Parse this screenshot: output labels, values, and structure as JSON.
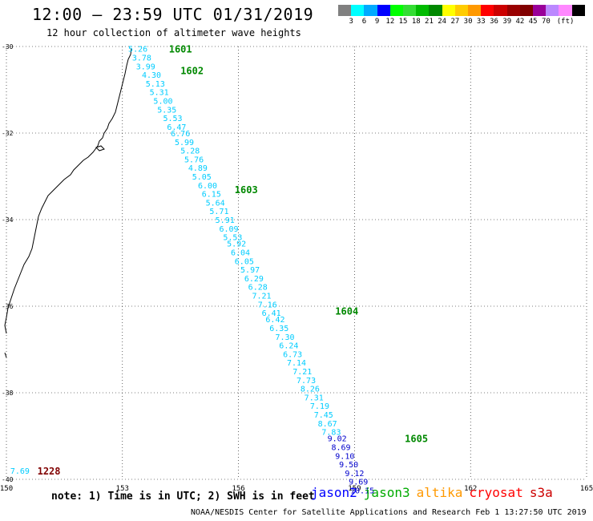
{
  "header": {
    "title": "12:00 — 23:59 UTC 01/31/2019",
    "subtitle": "12 hour collection of altimeter wave heights"
  },
  "legend": {
    "colors": [
      "#808080",
      "#00ffff",
      "#00aaff",
      "#0000ff",
      "#00ff00",
      "#33dd33",
      "#00bb00",
      "#008800",
      "#ffff00",
      "#ffcc00",
      "#ff9900",
      "#ff0000",
      "#cc0000",
      "#990000",
      "#800000",
      "#990099",
      "#bb88ff",
      "#ff88ff",
      "#000000"
    ],
    "labels": [
      "3",
      "6",
      "9",
      "12",
      "15",
      "18",
      "21",
      "24",
      "27",
      "30",
      "33",
      "36",
      "39",
      "42",
      "45",
      "70",
      "(ft)"
    ]
  },
  "map": {
    "lat_labels": [
      "-30",
      "-32",
      "-34",
      "-36",
      "-38",
      "-40"
    ],
    "lon_labels": [
      "150",
      "153",
      "156",
      "159",
      "162",
      "165"
    ],
    "lat_values": [
      -30,
      -32,
      -34,
      -36,
      -38,
      -40
    ],
    "lon_values": [
      150,
      153,
      156,
      159,
      162,
      165
    ],
    "track_times": [
      {
        "label": "1601",
        "lon": 154.2,
        "lat": -30.05
      },
      {
        "label": "1602",
        "lon": 154.5,
        "lat": -30.55
      },
      {
        "label": "1603",
        "lon": 155.9,
        "lat": -33.3
      },
      {
        "label": "1604",
        "lon": 158.5,
        "lat": -36.1
      },
      {
        "label": "1605",
        "lon": 160.3,
        "lat": -39.05
      },
      {
        "label": "1228",
        "lon": 150.8,
        "lat": -39.8
      }
    ],
    "observations": [
      {
        "v": "5.26",
        "lon": 153.4,
        "lat": -30.05,
        "c": "#00ccff"
      },
      {
        "v": "3.78",
        "lon": 153.5,
        "lat": -30.25,
        "c": "#00ccff"
      },
      {
        "v": "3.99",
        "lon": 153.6,
        "lat": -30.45,
        "c": "#00ccff"
      },
      {
        "v": "4.30",
        "lon": 153.75,
        "lat": -30.65,
        "c": "#00ccff"
      },
      {
        "v": "5.13",
        "lon": 153.85,
        "lat": -30.85,
        "c": "#00ccff"
      },
      {
        "v": "5.31",
        "lon": 153.95,
        "lat": -31.05,
        "c": "#00ccff"
      },
      {
        "v": "5.00",
        "lon": 154.05,
        "lat": -31.25,
        "c": "#00ccff"
      },
      {
        "v": "5.35",
        "lon": 154.15,
        "lat": -31.45,
        "c": "#00ccff"
      },
      {
        "v": "5.53",
        "lon": 154.3,
        "lat": -31.65,
        "c": "#00ccff"
      },
      {
        "v": "6.47",
        "lon": 154.4,
        "lat": -31.85,
        "c": "#00ccff"
      },
      {
        "v": "6.76",
        "lon": 154.5,
        "lat": -32.0,
        "c": "#00ccff"
      },
      {
        "v": "5.99",
        "lon": 154.6,
        "lat": -32.2,
        "c": "#00ccff"
      },
      {
        "v": "5.28",
        "lon": 154.75,
        "lat": -32.4,
        "c": "#00ccff"
      },
      {
        "v": "5.76",
        "lon": 154.85,
        "lat": -32.6,
        "c": "#00ccff"
      },
      {
        "v": "4.89",
        "lon": 154.95,
        "lat": -32.8,
        "c": "#00ccff"
      },
      {
        "v": "5.05",
        "lon": 155.05,
        "lat": -33.0,
        "c": "#00ccff"
      },
      {
        "v": "6.00",
        "lon": 155.2,
        "lat": -33.2,
        "c": "#00ccff"
      },
      {
        "v": "6.15",
        "lon": 155.3,
        "lat": -33.4,
        "c": "#00ccff"
      },
      {
        "v": "5.64",
        "lon": 155.4,
        "lat": -33.6,
        "c": "#00ccff"
      },
      {
        "v": "5.71",
        "lon": 155.5,
        "lat": -33.8,
        "c": "#00ccff"
      },
      {
        "v": "5.91",
        "lon": 155.65,
        "lat": -34.0,
        "c": "#00ccff"
      },
      {
        "v": "6.09",
        "lon": 155.75,
        "lat": -34.2,
        "c": "#00ccff"
      },
      {
        "v": "5.53",
        "lon": 155.85,
        "lat": -34.4,
        "c": "#00ccff"
      },
      {
        "v": "5.92",
        "lon": 155.95,
        "lat": -34.55,
        "c": "#00ccff"
      },
      {
        "v": "6.04",
        "lon": 156.05,
        "lat": -34.75,
        "c": "#00ccff"
      },
      {
        "v": "6.05",
        "lon": 156.15,
        "lat": -34.95,
        "c": "#00ccff"
      },
      {
        "v": "5.97",
        "lon": 156.3,
        "lat": -35.15,
        "c": "#00ccff"
      },
      {
        "v": "6.29",
        "lon": 156.4,
        "lat": -35.35,
        "c": "#00ccff"
      },
      {
        "v": "6.28",
        "lon": 156.5,
        "lat": -35.55,
        "c": "#00ccff"
      },
      {
        "v": "7.21",
        "lon": 156.6,
        "lat": -35.75,
        "c": "#00ccff"
      },
      {
        "v": "7.16",
        "lon": 156.75,
        "lat": -35.95,
        "c": "#00ccff"
      },
      {
        "v": "6.41",
        "lon": 156.85,
        "lat": -36.15,
        "c": "#00ccff"
      },
      {
        "v": "6.42",
        "lon": 156.95,
        "lat": -36.3,
        "c": "#00ccff"
      },
      {
        "v": "6.35",
        "lon": 157.05,
        "lat": -36.5,
        "c": "#00ccff"
      },
      {
        "v": "7.30",
        "lon": 157.2,
        "lat": -36.7,
        "c": "#00ccff"
      },
      {
        "v": "6.24",
        "lon": 157.3,
        "lat": -36.9,
        "c": "#00ccff"
      },
      {
        "v": "6.73",
        "lon": 157.4,
        "lat": -37.1,
        "c": "#00ccff"
      },
      {
        "v": "7.14",
        "lon": 157.5,
        "lat": -37.3,
        "c": "#00ccff"
      },
      {
        "v": "7.21",
        "lon": 157.65,
        "lat": -37.5,
        "c": "#00ccff"
      },
      {
        "v": "7.73",
        "lon": 157.75,
        "lat": -37.7,
        "c": "#00ccff"
      },
      {
        "v": "8.26",
        "lon": 157.85,
        "lat": -37.9,
        "c": "#00ccff"
      },
      {
        "v": "7.31",
        "lon": 157.95,
        "lat": -38.1,
        "c": "#00ccff"
      },
      {
        "v": "7.19",
        "lon": 158.1,
        "lat": -38.3,
        "c": "#00ccff"
      },
      {
        "v": "7.45",
        "lon": 158.2,
        "lat": -38.5,
        "c": "#00ccff"
      },
      {
        "v": "8.67",
        "lon": 158.3,
        "lat": -38.7,
        "c": "#00ccff"
      },
      {
        "v": "7.83",
        "lon": 158.4,
        "lat": -38.9,
        "c": "#00ccff"
      },
      {
        "v": "9.02",
        "lon": 158.55,
        "lat": -39.05,
        "c": "#0000cc"
      },
      {
        "v": "8.69",
        "lon": 158.65,
        "lat": -39.25,
        "c": "#0000cc"
      },
      {
        "v": "9.10",
        "lon": 158.75,
        "lat": -39.45,
        "c": "#0000cc"
      },
      {
        "v": "9.50",
        "lon": 158.85,
        "lat": -39.65,
        "c": "#0000cc"
      },
      {
        "v": "9.12",
        "lon": 159.0,
        "lat": -39.85,
        "c": "#0000cc"
      },
      {
        "v": "9.69",
        "lon": 159.1,
        "lat": -40.05,
        "c": "#0000cc"
      },
      {
        "v": "10.15",
        "lon": 159.2,
        "lat": -40.25,
        "c": "#0000cc"
      },
      {
        "v": "7.69",
        "lon": 150.35,
        "lat": -39.8,
        "c": "#00ccff"
      }
    ]
  },
  "footer": {
    "note": "note: 1) Time is in UTC; 2) SWH is in feet",
    "satellites": [
      {
        "name": "jason2",
        "color": "#0000ff"
      },
      {
        "name": "jason3",
        "color": "#00aa00"
      },
      {
        "name": "altika",
        "color": "#ff9900"
      },
      {
        "name": "cryosat",
        "color": "#ff0000"
      },
      {
        "name": "s3a",
        "color": "#cc0000"
      }
    ],
    "credit": "NOAA/NESDIS Center for Satellite Applications and Research    Feb  1 13:27:50 UTC 2019"
  }
}
